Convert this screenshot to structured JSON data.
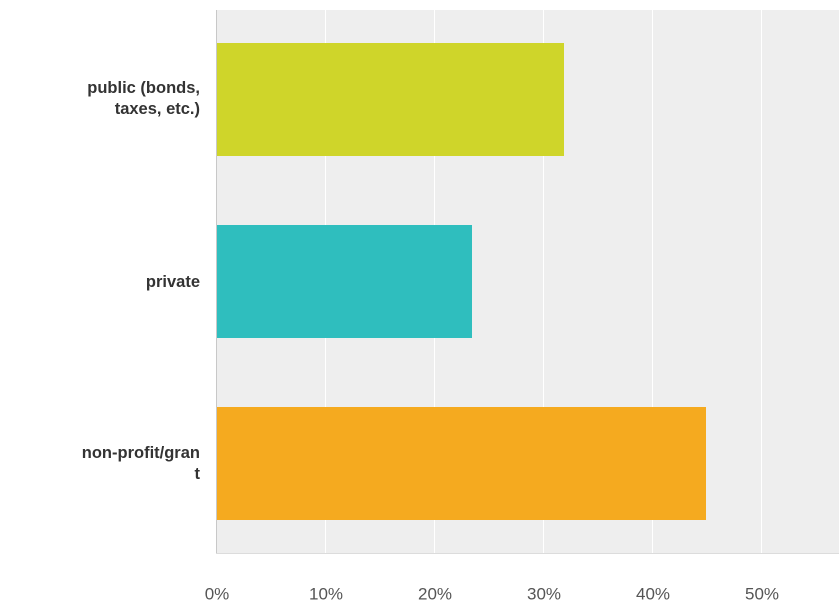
{
  "chart_data": {
    "type": "bar",
    "orientation": "horizontal",
    "categories": [
      "public (bonds, taxes, etc.)",
      "private",
      "non-profit/gran t"
    ],
    "values": [
      31.8,
      23.4,
      44.9
    ],
    "colors": [
      "#cfd52a",
      "#2fbebe",
      "#f5aa1f"
    ],
    "xlim": [
      0,
      55
    ],
    "xticks": [
      "0%",
      "10%",
      "20%",
      "30%",
      "40%",
      "50%"
    ],
    "grid": true,
    "category_labels": [
      "public (bonds,\ntaxes, etc.)",
      "private",
      "non-profit/gran\nt"
    ]
  }
}
